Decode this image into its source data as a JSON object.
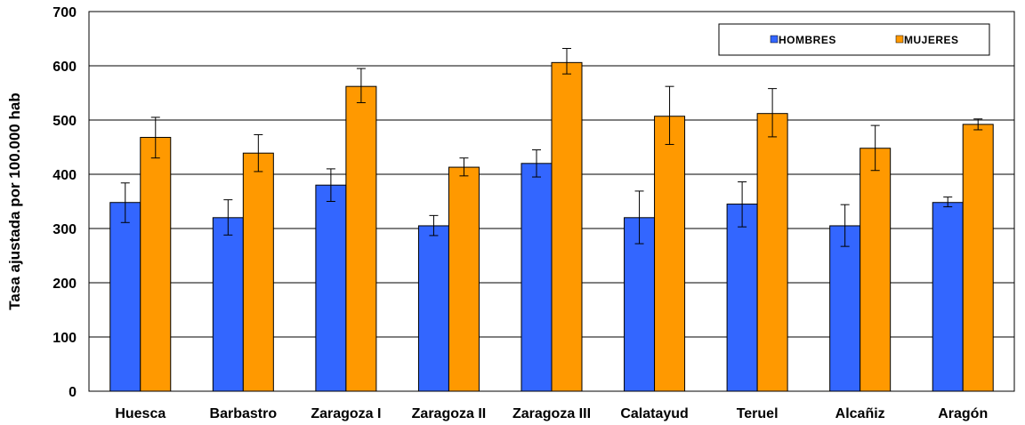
{
  "chart_data": {
    "type": "bar",
    "title": "",
    "xlabel": "",
    "ylabel": "Tasa ajustada por 100.000  hab",
    "ylim": [
      0,
      700
    ],
    "yticks": [
      "0",
      "100",
      "200",
      "300",
      "400",
      "500",
      "600",
      "700"
    ],
    "grid": true,
    "legend_position": "top-right",
    "categories": [
      "Huesca",
      "Barbastro",
      "Zaragoza I",
      "Zaragoza II",
      "Zaragoza III",
      "Calatayud",
      "Teruel",
      "Alcañiz",
      "Aragón"
    ],
    "series": [
      {
        "name": "HOMBRES",
        "color": "#3366ff",
        "values": [
          348,
          320,
          380,
          305,
          420,
          320,
          345,
          305,
          348
        ],
        "error_low": [
          311,
          288,
          350,
          287,
          395,
          272,
          303,
          267,
          340
        ],
        "error_high": [
          384,
          353,
          410,
          324,
          445,
          369,
          386,
          344,
          358
        ]
      },
      {
        "name": "MUJERES",
        "color": "#ff9900",
        "values": [
          468,
          439,
          562,
          413,
          606,
          507,
          512,
          448,
          492
        ],
        "error_low": [
          430,
          405,
          532,
          397,
          585,
          455,
          469,
          407,
          482
        ],
        "error_high": [
          505,
          473,
          595,
          430,
          632,
          562,
          558,
          490,
          502
        ]
      }
    ]
  }
}
